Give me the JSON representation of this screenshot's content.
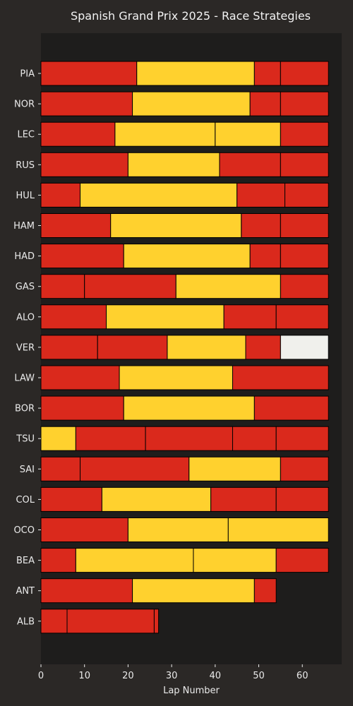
{
  "chart_data": {
    "type": "bar",
    "orientation": "horizontal-stacked",
    "title": "Spanish Grand Prix 2025 - Race Strategies",
    "xlabel": "Lap Number",
    "ylabel": "",
    "xlim": [
      0,
      69
    ],
    "xticks": [
      0,
      10,
      20,
      30,
      40,
      50,
      60
    ],
    "grid": false,
    "legend": "none",
    "colors": {
      "background": "#2b2826",
      "plot_area": "#1e1d1c",
      "SOFT": "#da291c",
      "MEDIUM": "#ffd12e",
      "HARD": "#f0f0ec",
      "edge": "#000000"
    },
    "drivers": [
      {
        "name": "PIA",
        "stints": [
          {
            "compound": "SOFT",
            "start": 0,
            "end": 22
          },
          {
            "compound": "MEDIUM",
            "start": 22,
            "end": 49
          },
          {
            "compound": "SOFT",
            "start": 49,
            "end": 55
          },
          {
            "compound": "SOFT",
            "start": 55,
            "end": 66
          }
        ]
      },
      {
        "name": "NOR",
        "stints": [
          {
            "compound": "SOFT",
            "start": 0,
            "end": 21
          },
          {
            "compound": "MEDIUM",
            "start": 21,
            "end": 48
          },
          {
            "compound": "SOFT",
            "start": 48,
            "end": 55
          },
          {
            "compound": "SOFT",
            "start": 55,
            "end": 66
          }
        ]
      },
      {
        "name": "LEC",
        "stints": [
          {
            "compound": "SOFT",
            "start": 0,
            "end": 17
          },
          {
            "compound": "MEDIUM",
            "start": 17,
            "end": 40
          },
          {
            "compound": "MEDIUM",
            "start": 40,
            "end": 55
          },
          {
            "compound": "SOFT",
            "start": 55,
            "end": 66
          }
        ]
      },
      {
        "name": "RUS",
        "stints": [
          {
            "compound": "SOFT",
            "start": 0,
            "end": 20
          },
          {
            "compound": "MEDIUM",
            "start": 20,
            "end": 41
          },
          {
            "compound": "SOFT",
            "start": 41,
            "end": 55
          },
          {
            "compound": "SOFT",
            "start": 55,
            "end": 66
          }
        ]
      },
      {
        "name": "HUL",
        "stints": [
          {
            "compound": "SOFT",
            "start": 0,
            "end": 9
          },
          {
            "compound": "MEDIUM",
            "start": 9,
            "end": 45
          },
          {
            "compound": "SOFT",
            "start": 45,
            "end": 56
          },
          {
            "compound": "SOFT",
            "start": 56,
            "end": 66
          }
        ]
      },
      {
        "name": "HAM",
        "stints": [
          {
            "compound": "SOFT",
            "start": 0,
            "end": 16
          },
          {
            "compound": "MEDIUM",
            "start": 16,
            "end": 46
          },
          {
            "compound": "SOFT",
            "start": 46,
            "end": 55
          },
          {
            "compound": "SOFT",
            "start": 55,
            "end": 66
          }
        ]
      },
      {
        "name": "HAD",
        "stints": [
          {
            "compound": "SOFT",
            "start": 0,
            "end": 19
          },
          {
            "compound": "MEDIUM",
            "start": 19,
            "end": 48
          },
          {
            "compound": "SOFT",
            "start": 48,
            "end": 55
          },
          {
            "compound": "SOFT",
            "start": 55,
            "end": 66
          }
        ]
      },
      {
        "name": "GAS",
        "stints": [
          {
            "compound": "SOFT",
            "start": 0,
            "end": 10
          },
          {
            "compound": "SOFT",
            "start": 10,
            "end": 31
          },
          {
            "compound": "MEDIUM",
            "start": 31,
            "end": 55
          },
          {
            "compound": "SOFT",
            "start": 55,
            "end": 66
          }
        ]
      },
      {
        "name": "ALO",
        "stints": [
          {
            "compound": "SOFT",
            "start": 0,
            "end": 15
          },
          {
            "compound": "MEDIUM",
            "start": 15,
            "end": 42
          },
          {
            "compound": "SOFT",
            "start": 42,
            "end": 54
          },
          {
            "compound": "SOFT",
            "start": 54,
            "end": 66
          }
        ]
      },
      {
        "name": "VER",
        "stints": [
          {
            "compound": "SOFT",
            "start": 0,
            "end": 13
          },
          {
            "compound": "SOFT",
            "start": 13,
            "end": 29
          },
          {
            "compound": "MEDIUM",
            "start": 29,
            "end": 47
          },
          {
            "compound": "SOFT",
            "start": 47,
            "end": 55
          },
          {
            "compound": "HARD",
            "start": 55,
            "end": 66
          }
        ]
      },
      {
        "name": "LAW",
        "stints": [
          {
            "compound": "SOFT",
            "start": 0,
            "end": 18
          },
          {
            "compound": "MEDIUM",
            "start": 18,
            "end": 44
          },
          {
            "compound": "SOFT",
            "start": 44,
            "end": 66
          }
        ]
      },
      {
        "name": "BOR",
        "stints": [
          {
            "compound": "SOFT",
            "start": 0,
            "end": 19
          },
          {
            "compound": "MEDIUM",
            "start": 19,
            "end": 49
          },
          {
            "compound": "SOFT",
            "start": 49,
            "end": 66
          }
        ]
      },
      {
        "name": "TSU",
        "stints": [
          {
            "compound": "MEDIUM",
            "start": 0,
            "end": 8
          },
          {
            "compound": "SOFT",
            "start": 8,
            "end": 24
          },
          {
            "compound": "SOFT",
            "start": 24,
            "end": 44
          },
          {
            "compound": "SOFT",
            "start": 44,
            "end": 54
          },
          {
            "compound": "SOFT",
            "start": 54,
            "end": 66
          }
        ]
      },
      {
        "name": "SAI",
        "stints": [
          {
            "compound": "SOFT",
            "start": 0,
            "end": 9
          },
          {
            "compound": "SOFT",
            "start": 9,
            "end": 34
          },
          {
            "compound": "MEDIUM",
            "start": 34,
            "end": 55
          },
          {
            "compound": "SOFT",
            "start": 55,
            "end": 66
          }
        ]
      },
      {
        "name": "COL",
        "stints": [
          {
            "compound": "SOFT",
            "start": 0,
            "end": 14
          },
          {
            "compound": "MEDIUM",
            "start": 14,
            "end": 39
          },
          {
            "compound": "SOFT",
            "start": 39,
            "end": 54
          },
          {
            "compound": "SOFT",
            "start": 54,
            "end": 66
          }
        ]
      },
      {
        "name": "OCO",
        "stints": [
          {
            "compound": "SOFT",
            "start": 0,
            "end": 20
          },
          {
            "compound": "MEDIUM",
            "start": 20,
            "end": 43
          },
          {
            "compound": "MEDIUM",
            "start": 43,
            "end": 66
          }
        ]
      },
      {
        "name": "BEA",
        "stints": [
          {
            "compound": "SOFT",
            "start": 0,
            "end": 8
          },
          {
            "compound": "MEDIUM",
            "start": 8,
            "end": 35
          },
          {
            "compound": "MEDIUM",
            "start": 35,
            "end": 54
          },
          {
            "compound": "SOFT",
            "start": 54,
            "end": 66
          }
        ]
      },
      {
        "name": "ANT",
        "stints": [
          {
            "compound": "SOFT",
            "start": 0,
            "end": 21
          },
          {
            "compound": "MEDIUM",
            "start": 21,
            "end": 49
          },
          {
            "compound": "SOFT",
            "start": 49,
            "end": 54
          }
        ]
      },
      {
        "name": "ALB",
        "stints": [
          {
            "compound": "SOFT",
            "start": 0,
            "end": 6
          },
          {
            "compound": "SOFT",
            "start": 6,
            "end": 26
          },
          {
            "compound": "SOFT",
            "start": 26,
            "end": 27
          }
        ]
      }
    ]
  }
}
